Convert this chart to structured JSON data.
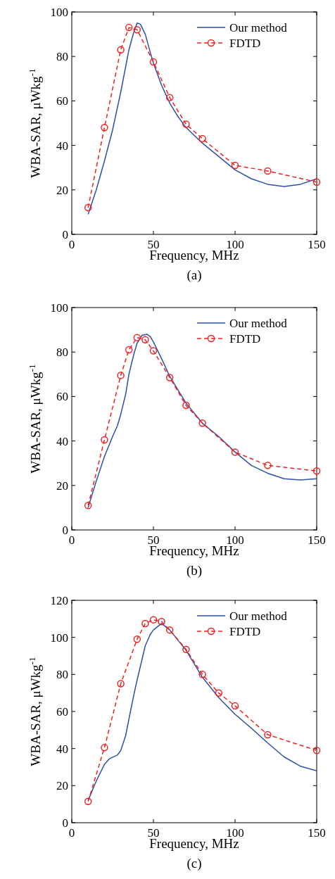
{
  "chart_data": [
    {
      "type": "line",
      "xlabel": "Frequency, MHz",
      "ylabel": "WBA-SAR, μWkg$^{-1}$",
      "annotations": [
        "(a)"
      ],
      "xlim": [
        0,
        150
      ],
      "xticks": [
        0,
        50,
        100,
        150
      ],
      "ylim": [
        0,
        100
      ],
      "yticks": [
        0,
        20,
        40,
        60,
        80,
        100
      ],
      "legend": "top right",
      "grid": false,
      "series": [
        {
          "name": "Our method",
          "color": "#2f4fa8",
          "marker": "none",
          "line_style": "solid",
          "x": [
            10,
            15,
            20,
            25,
            30,
            35,
            38,
            40,
            42,
            45,
            48,
            50,
            55,
            60,
            65,
            70,
            80,
            90,
            100,
            110,
            120,
            130,
            140,
            150
          ],
          "values": [
            9,
            20,
            33,
            47,
            64,
            83,
            91,
            95,
            94.5,
            90,
            82,
            77,
            67,
            59,
            53,
            48,
            41,
            35,
            29,
            25,
            22.5,
            21.5,
            22.5,
            25
          ]
        },
        {
          "name": "FDTD",
          "color": "#ee2222",
          "marker": "circle",
          "line_style": "dashed",
          "x": [
            10,
            20,
            30,
            35,
            40,
            50,
            60,
            70,
            80,
            100,
            120,
            150
          ],
          "values": [
            12,
            48,
            83,
            93,
            92,
            77.5,
            61.5,
            49.5,
            43,
            31,
            28.5,
            23.5
          ]
        }
      ]
    },
    {
      "type": "line",
      "xlabel": "Frequency, MHz",
      "ylabel": "WBA-SAR, μWkg$^{-1}$",
      "annotations": [
        "(b)"
      ],
      "xlim": [
        0,
        150
      ],
      "xticks": [
        0,
        50,
        100,
        150
      ],
      "ylim": [
        0,
        100
      ],
      "yticks": [
        0,
        20,
        40,
        60,
        80,
        100
      ],
      "legend": "top right",
      "grid": false,
      "series": [
        {
          "name": "Our method",
          "color": "#2f4fa8",
          "marker": "none",
          "line_style": "solid",
          "x": [
            10,
            15,
            20,
            25,
            28,
            30,
            33,
            35,
            38,
            40,
            43,
            46,
            48,
            50,
            55,
            60,
            70,
            80,
            90,
            100,
            110,
            120,
            130,
            140,
            150
          ],
          "values": [
            10,
            22,
            33,
            42,
            47,
            52,
            61,
            70,
            79,
            84,
            87.5,
            88,
            87,
            84.5,
            77,
            69,
            57,
            48,
            42,
            35,
            29,
            25.5,
            23,
            22.5,
            23
          ]
        },
        {
          "name": "FDTD",
          "color": "#ee2222",
          "marker": "circle",
          "line_style": "dashed",
          "x": [
            10,
            20,
            30,
            35,
            40,
            45,
            50,
            60,
            70,
            80,
            100,
            120,
            150
          ],
          "values": [
            11,
            40.5,
            69.5,
            81,
            86.5,
            85.5,
            80.5,
            68.5,
            56,
            48,
            35,
            29,
            26.5
          ]
        }
      ]
    },
    {
      "type": "line",
      "xlabel": "Frequency, MHz",
      "ylabel": "WBA-SAR, μWkg$^{-1}$",
      "annotations": [
        "(c)"
      ],
      "xlim": [
        0,
        150
      ],
      "xticks": [
        0,
        50,
        100,
        150
      ],
      "ylim": [
        0,
        120
      ],
      "yticks": [
        0,
        20,
        40,
        60,
        80,
        100,
        120
      ],
      "legend": "top right",
      "grid": false,
      "series": [
        {
          "name": "Our method",
          "color": "#2f4fa8",
          "marker": "none",
          "line_style": "solid",
          "x": [
            10,
            15,
            20,
            23,
            28,
            30,
            33,
            35,
            38,
            40,
            43,
            45,
            48,
            50,
            55,
            60,
            70,
            80,
            90,
            100,
            110,
            120,
            130,
            140,
            150
          ],
          "values": [
            12,
            22.5,
            31.5,
            34.5,
            36.5,
            39,
            47,
            56,
            69,
            77,
            88,
            95.5,
            101.5,
            104,
            107.5,
            104,
            93,
            78.5,
            67.5,
            58.5,
            51,
            43,
            35.5,
            30.5,
            28
          ]
        },
        {
          "name": "FDTD",
          "color": "#ee2222",
          "marker": "circle",
          "line_style": "dashed",
          "x": [
            10,
            20,
            30,
            40,
            45,
            50,
            55,
            60,
            70,
            80,
            90,
            100,
            120,
            150
          ],
          "values": [
            11.5,
            40.5,
            75,
            99,
            107.5,
            109.5,
            108.5,
            104,
            93.5,
            80,
            70,
            63,
            47.5,
            39
          ]
        }
      ]
    }
  ]
}
